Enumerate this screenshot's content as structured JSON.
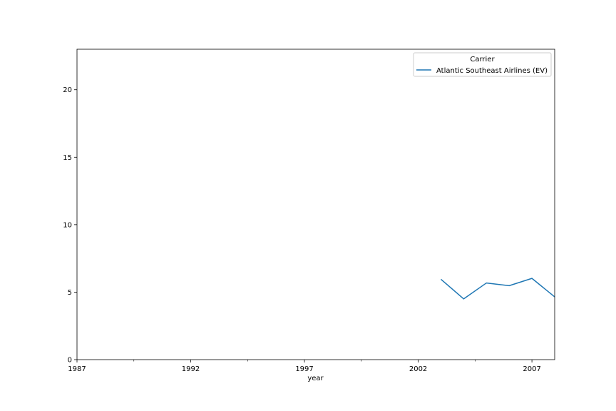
{
  "chart_data": {
    "type": "line",
    "xlabel": "year",
    "ylabel": "",
    "xlim": [
      1987,
      2008
    ],
    "ylim": [
      0,
      23
    ],
    "xticks": [
      1987,
      1992,
      1997,
      2002,
      2007
    ],
    "xticks_minor": [
      1989.5,
      1994.5,
      1999.5,
      2004.5
    ],
    "yticks": [
      0,
      5,
      10,
      15,
      20
    ],
    "grid": false,
    "legend": {
      "title": "Carrier",
      "placement": "top-right",
      "entries": [
        "Atlantic Southeast Airlines (EV)"
      ]
    },
    "series": [
      {
        "name": "Atlantic Southeast Airlines (EV)",
        "color": "#1f77b4",
        "x": [
          2003,
          2004,
          2005,
          2006,
          2007,
          2008
        ],
        "y": [
          5.95,
          4.5,
          5.68,
          5.48,
          6.02,
          4.65
        ]
      }
    ]
  }
}
